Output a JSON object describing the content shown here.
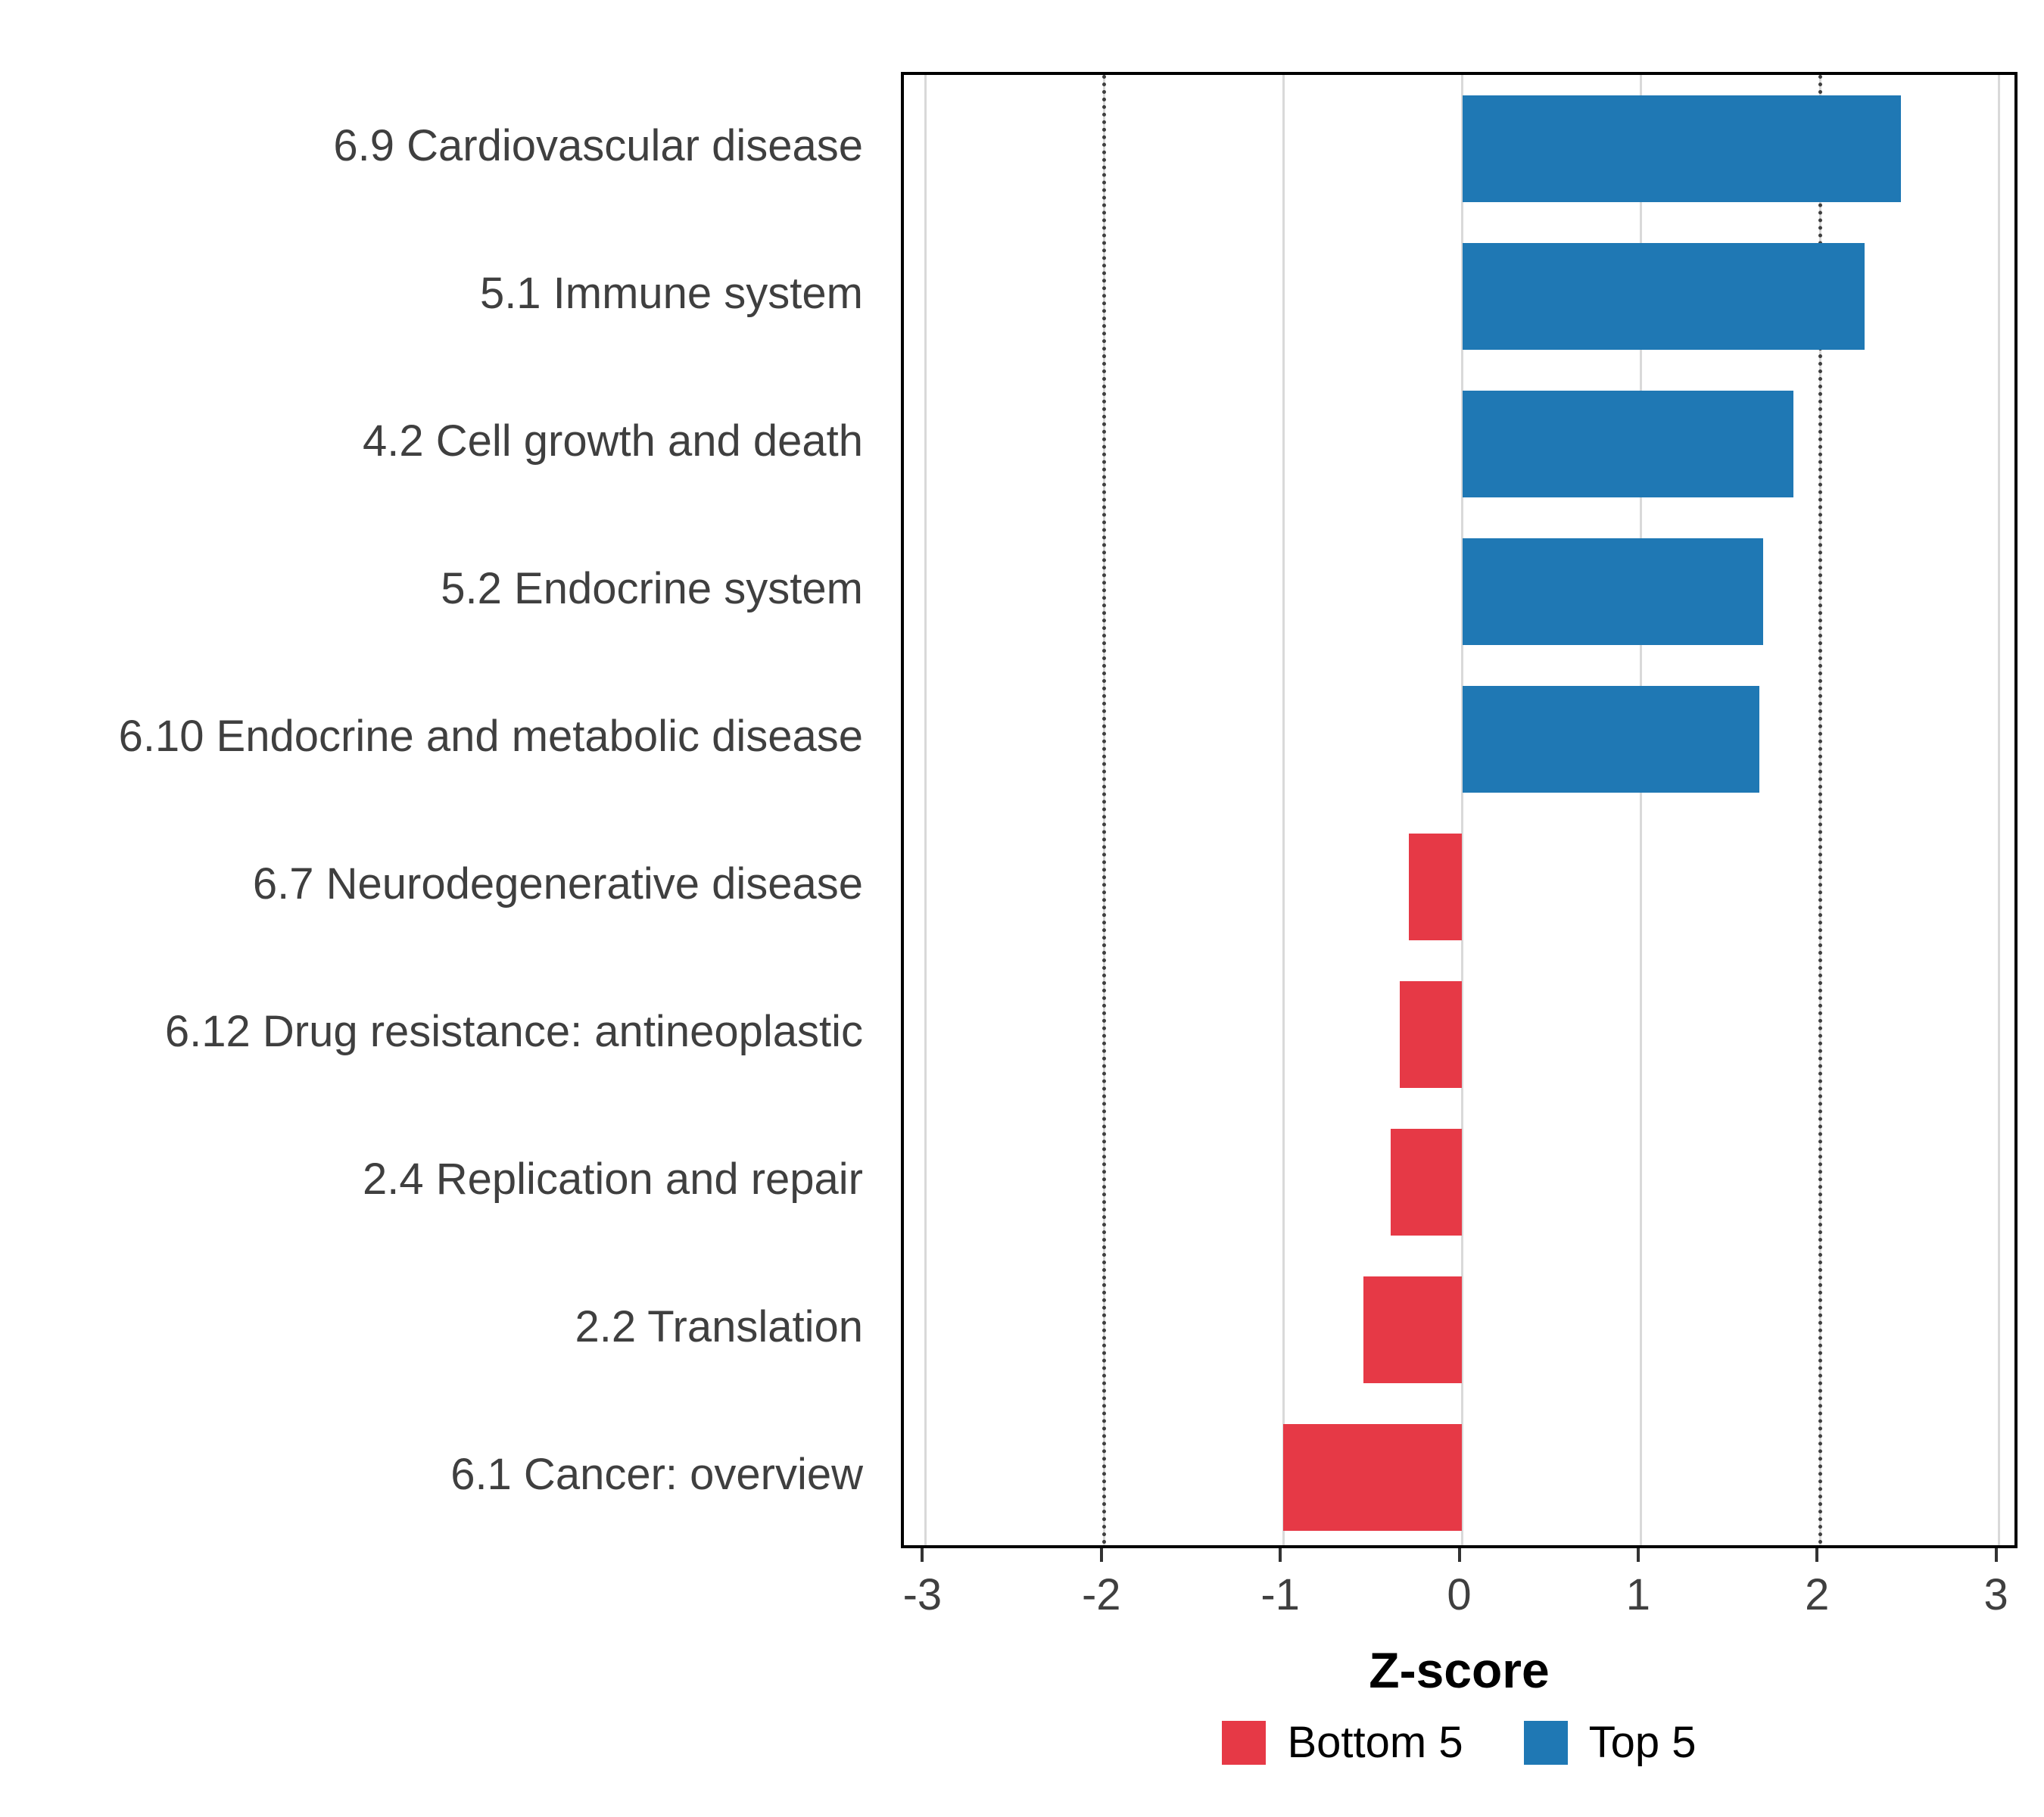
{
  "figure": {
    "background": "#ffffff"
  },
  "chart_data": {
    "type": "bar",
    "orientation": "horizontal",
    "title": "",
    "xlabel": "Z-score",
    "ylabel": "",
    "xlim": [
      -3,
      3
    ],
    "xticks": [
      -3,
      -2,
      -1,
      0,
      1,
      2,
      3
    ],
    "reference_lines": [
      -2,
      2
    ],
    "grid": "major-x-only",
    "legend_position": "bottom",
    "categories": [
      "6.9 Cardiovascular disease",
      "5.1 Immune system",
      "4.2 Cell growth and death",
      "5.2 Endocrine system",
      "6.10 Endocrine and metabolic disease",
      "6.7 Neurodegenerative disease",
      "6.12 Drug resistance: antineoplastic",
      "2.4 Replication and repair",
      "2.2 Translation",
      "6.1 Cancer: overview"
    ],
    "values": [
      2.45,
      2.25,
      1.85,
      1.68,
      1.66,
      -0.3,
      -0.35,
      -0.4,
      -0.55,
      -1.0
    ],
    "groups": [
      "Top 5",
      "Top 5",
      "Top 5",
      "Top 5",
      "Top 5",
      "Bottom 5",
      "Bottom 5",
      "Bottom 5",
      "Bottom 5",
      "Bottom 5"
    ],
    "colors": {
      "Top 5": "#1f78b4",
      "Bottom 5": "#e63946"
    },
    "legend": {
      "entries": [
        {
          "label": "Bottom 5",
          "color": "#e63946"
        },
        {
          "label": "Top 5",
          "color": "#1f78b4"
        }
      ]
    }
  }
}
